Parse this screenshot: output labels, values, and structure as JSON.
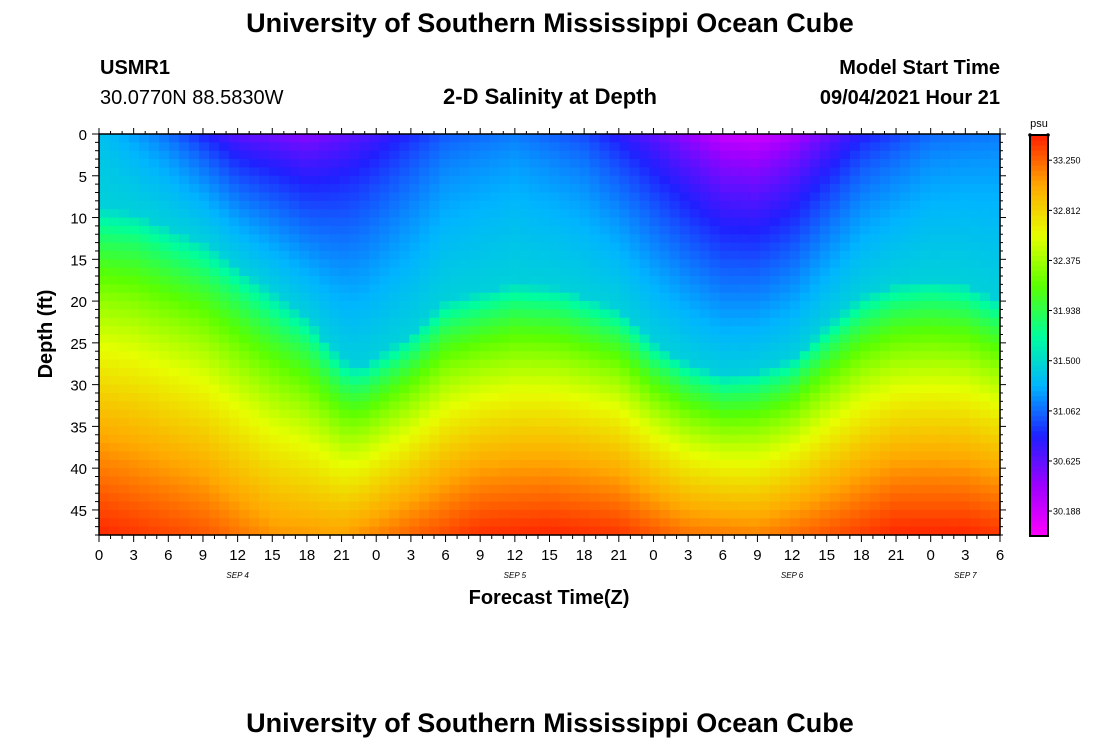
{
  "page": {
    "title_top": "University of Southern Mississippi Ocean Cube",
    "title_bottom": "University of Southern Mississippi Ocean Cube",
    "station": {
      "id": "USMR1",
      "coords": "30.0770N  88.5830W"
    },
    "plot_title": "2-D Salinity at Depth",
    "model_start": {
      "label": "Model Start Time",
      "value": "09/04/2021 Hour 21"
    }
  },
  "chart_data": {
    "type": "heatmap",
    "title": "2-D Salinity at Depth",
    "xlabel": "Forecast Time(Z)",
    "ylabel": "Depth (ft)",
    "x_hours": [
      0,
      78
    ],
    "x_tick_labels": [
      "0",
      "3",
      "6",
      "9",
      "12",
      "15",
      "18",
      "21",
      "0",
      "3",
      "6",
      "9",
      "12",
      "15",
      "18",
      "21",
      "0",
      "3",
      "6",
      "9",
      "12",
      "15",
      "18",
      "21",
      "0",
      "3",
      "6"
    ],
    "date_labels": [
      {
        "text": "SEP 4",
        "hour": 12
      },
      {
        "text": "SEP 5",
        "hour": 36
      },
      {
        "text": "SEP 6",
        "hour": 60
      },
      {
        "text": "SEP 7",
        "hour": 75
      }
    ],
    "ylim": [
      0,
      48
    ],
    "y_ticks": [
      0,
      5,
      10,
      15,
      20,
      25,
      30,
      35,
      40,
      45
    ],
    "y_inverted": true,
    "colorbar": {
      "unit": "psu",
      "min": 29.97,
      "max": 33.47,
      "tick_values": [
        33.25,
        32.812,
        32.375,
        31.938,
        31.5,
        31.062,
        30.625,
        30.188
      ],
      "tick_labels": [
        "33.250",
        "32.812",
        "32.375",
        "31.938",
        "31.500",
        "31.062",
        "30.625",
        "30.188"
      ],
      "colors": [
        "#ff00ff",
        "#a000ff",
        "#2020ff",
        "#00b4ff",
        "#00ff9c",
        "#5aff00",
        "#e6ff00",
        "#ffa800",
        "#ff2000"
      ]
    },
    "low_salinity_layer_depth_ft": {
      "hours": [
        0,
        3,
        9,
        15,
        18,
        21,
        22.5,
        27,
        30,
        36,
        40,
        45,
        48,
        51,
        54,
        57,
        60,
        63,
        66,
        69,
        72,
        75,
        78
      ],
      "depth": [
        9,
        9.5,
        13,
        19,
        22,
        27,
        28,
        24,
        20,
        18,
        18.5,
        21,
        25,
        27.5,
        29,
        28.5,
        27,
        23,
        19.5,
        18,
        17.5,
        18,
        20
      ]
    },
    "surface_minimum_psu": {
      "hours": [
        0,
        6,
        12,
        18,
        24,
        30,
        36,
        42,
        48,
        54,
        57,
        60,
        66,
        72,
        78
      ],
      "value": [
        31.35,
        31.05,
        30.6,
        30.45,
        30.7,
        31.0,
        31.1,
        30.95,
        30.6,
        30.2,
        30.15,
        30.3,
        30.8,
        31.05,
        31.1
      ]
    },
    "bottom_maximum_psu": {
      "hours": [
        0,
        9,
        15,
        21,
        27,
        33,
        39,
        45,
        51,
        57,
        63,
        69,
        75,
        78
      ],
      "value": [
        33.45,
        33.3,
        33.1,
        33.05,
        33.25,
        33.42,
        33.45,
        33.4,
        33.2,
        33.15,
        33.3,
        33.45,
        33.45,
        33.4
      ]
    }
  }
}
